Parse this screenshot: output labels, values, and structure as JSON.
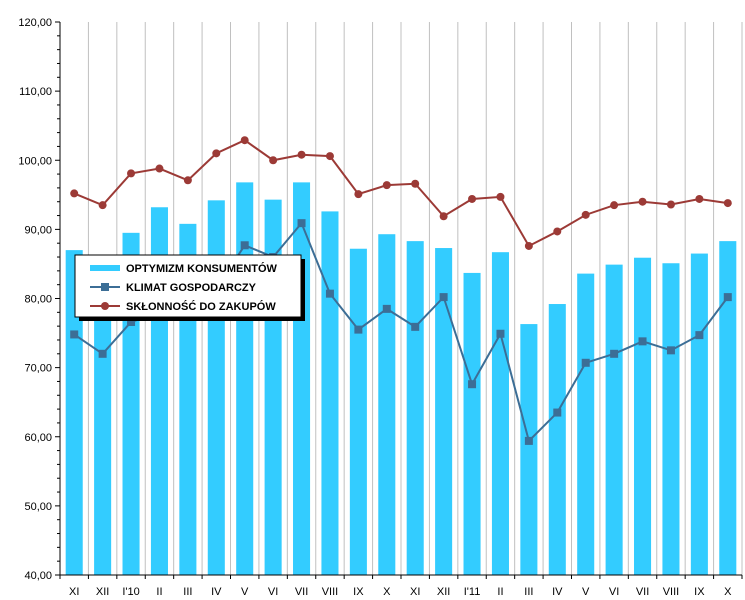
{
  "chart_data": {
    "type": "bar",
    "title": "",
    "xlabel": "",
    "ylabel": "",
    "ylim": [
      40,
      120
    ],
    "yticks": [
      40,
      50,
      60,
      70,
      80,
      90,
      100,
      110,
      120
    ],
    "ytick_labels": [
      "40,00",
      "50,00",
      "60,00",
      "70,00",
      "80,00",
      "90,00",
      "100,00",
      "110,00",
      "120,00"
    ],
    "grid": "vertical",
    "legend_position": "upper-left",
    "categories": [
      "XI",
      "XII",
      "I'10",
      "II",
      "III",
      "IV",
      "V",
      "VI",
      "VII",
      "VIII",
      "IX",
      "X",
      "XI",
      "XII",
      "I'11",
      "II",
      "III",
      "IV",
      "V",
      "VI",
      "VII",
      "VIII",
      "IX",
      "X"
    ],
    "series": [
      {
        "name": "OPTYMIZM KONSUMENTÓW",
        "kind": "bar",
        "color": "#33CCFF",
        "values": [
          87.0,
          78.0,
          89.5,
          93.2,
          90.8,
          94.2,
          96.8,
          94.3,
          96.8,
          92.6,
          87.2,
          89.3,
          88.3,
          87.3,
          83.7,
          86.7,
          76.3,
          79.2,
          83.6,
          84.9,
          85.9,
          85.1,
          86.5,
          88.3
        ]
      },
      {
        "name": "KLIMAT GOSPODARCZY",
        "kind": "line",
        "marker": "square",
        "color": "#3C6E96",
        "values": [
          74.8,
          72.0,
          76.6,
          78.0,
          79.4,
          81.4,
          87.7,
          86.0,
          90.9,
          80.7,
          75.5,
          78.5,
          75.9,
          80.2,
          67.6,
          74.9,
          59.4,
          63.5,
          70.7,
          72.0,
          73.8,
          72.5,
          74.7,
          80.2
        ]
      },
      {
        "name": "SKŁONNOŚĆ DO ZAKUPÓW",
        "kind": "line",
        "marker": "circle",
        "color": "#9C3A36",
        "values": [
          95.2,
          93.5,
          98.1,
          98.8,
          97.1,
          101.0,
          102.9,
          100.0,
          100.8,
          100.6,
          95.1,
          96.4,
          96.6,
          91.9,
          94.4,
          94.7,
          87.6,
          89.7,
          92.1,
          93.5,
          94.0,
          93.6,
          94.4,
          93.8
        ]
      }
    ]
  }
}
